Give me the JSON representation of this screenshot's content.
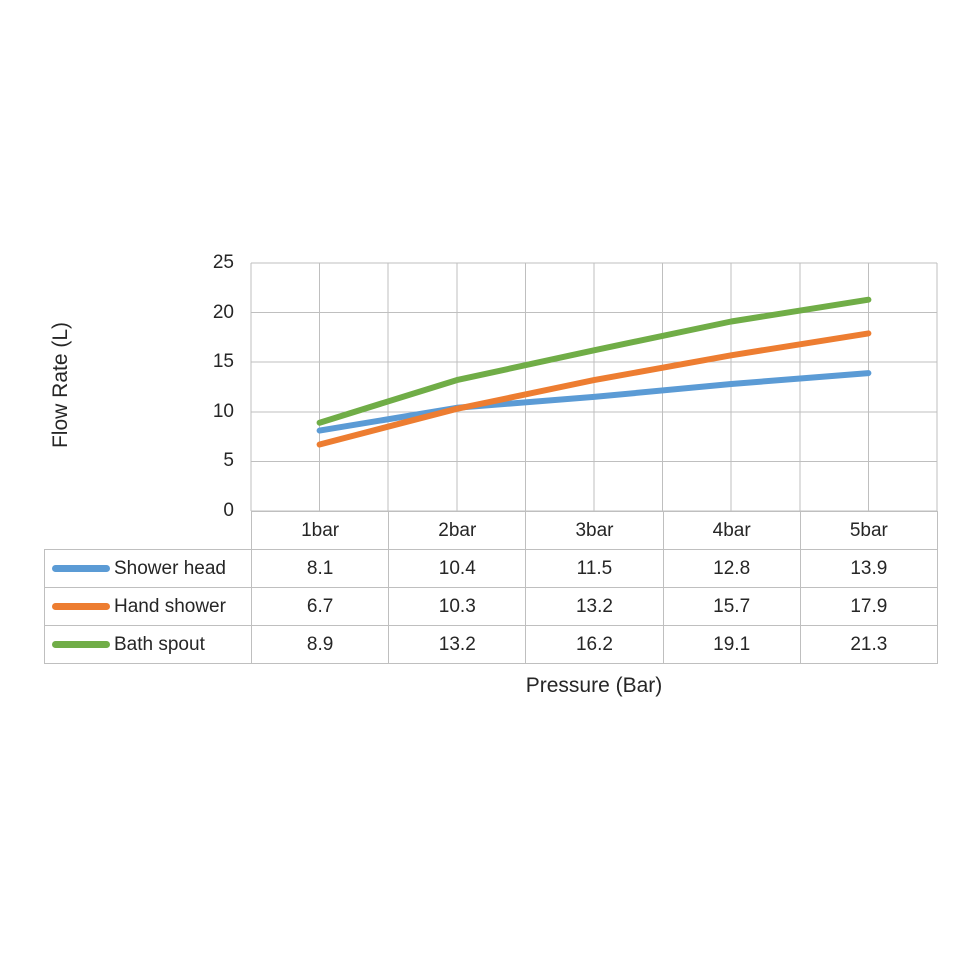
{
  "chart_data": {
    "type": "line",
    "xlabel": "Pressure (Bar)",
    "ylabel": "Flow Rate (L)",
    "categories": [
      "1bar",
      "2bar",
      "3bar",
      "4bar",
      "5bar"
    ],
    "series": [
      {
        "name": "Shower head",
        "color": "#5B9BD5",
        "values": [
          8.1,
          10.4,
          11.5,
          12.8,
          13.9
        ]
      },
      {
        "name": "Hand shower",
        "color": "#ED7D31",
        "values": [
          6.7,
          10.3,
          13.2,
          15.7,
          17.9
        ]
      },
      {
        "name": "Bath spout",
        "color": "#70AD47",
        "values": [
          8.9,
          13.2,
          16.2,
          19.1,
          21.3
        ]
      }
    ],
    "y_ticks": [
      0,
      5,
      10,
      15,
      20,
      25
    ],
    "ylim": [
      0,
      25
    ],
    "grid": true,
    "legend_position": "data-table-left"
  },
  "colors": {
    "gridline": "#BFBFBF",
    "text": "#262626",
    "background": "#FFFFFF"
  }
}
